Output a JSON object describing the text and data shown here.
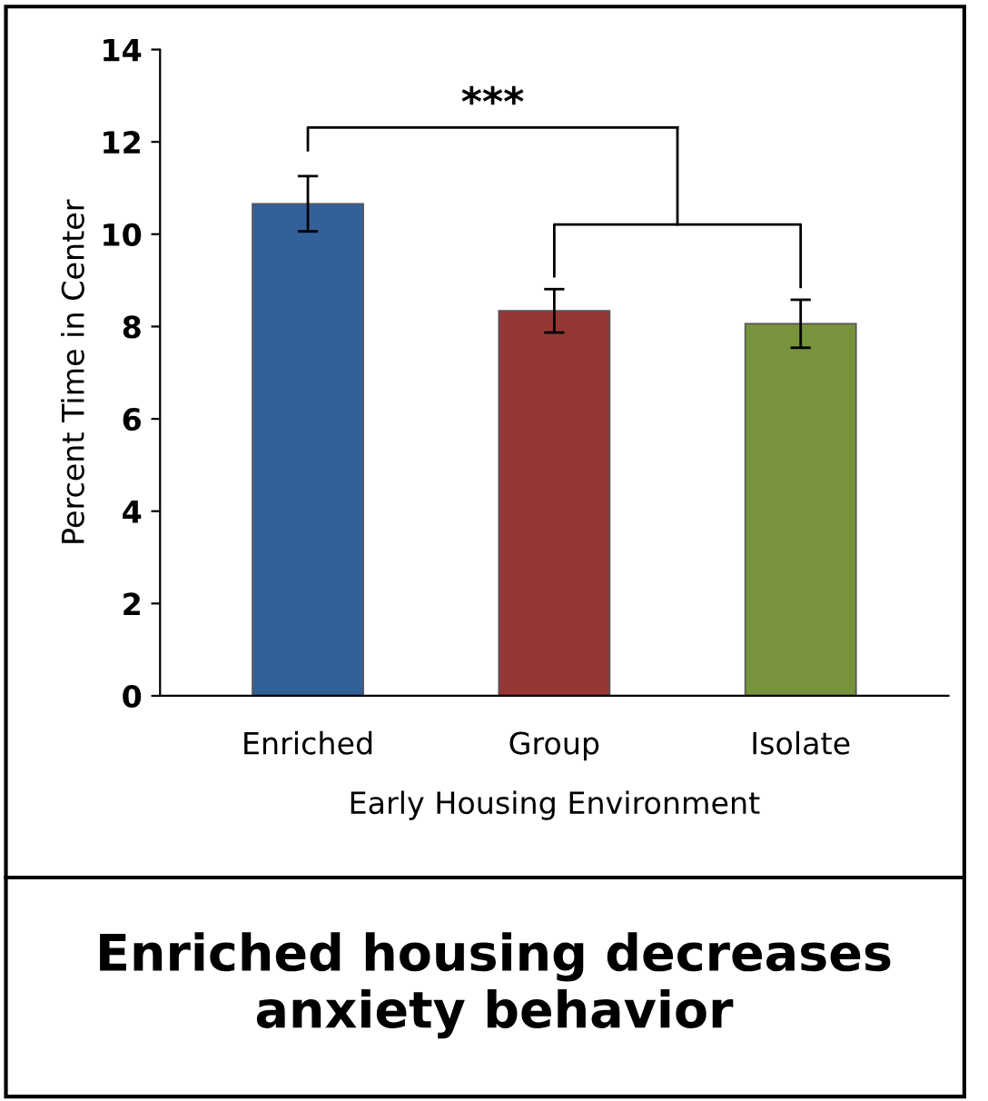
{
  "chart_data": {
    "type": "bar",
    "categories": [
      "Enriched",
      "Group",
      "Isolate"
    ],
    "values": [
      10.66,
      8.34,
      8.06
    ],
    "errors": [
      0.6,
      0.47,
      0.52
    ],
    "colors": [
      "#34609a",
      "#953735",
      "#77943c"
    ],
    "xlabel": "Early Housing Environment",
    "ylabel": "Percent Time in Center",
    "ylim": [
      0,
      14
    ],
    "yticks": [
      0,
      2,
      4,
      6,
      8,
      10,
      12,
      14
    ],
    "grid": false,
    "legend": false,
    "annotations": [
      "***",
      "Enriched housing decreases anxiety behavior"
    ]
  }
}
